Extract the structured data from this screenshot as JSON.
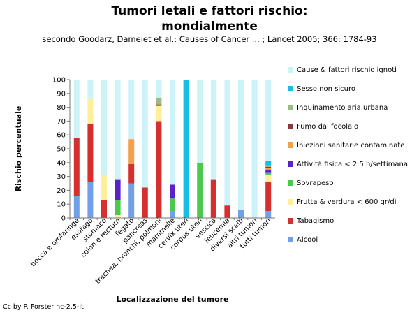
{
  "title_line1": "Tumori letali e fattori rischio:",
  "title_line2": "mondialmente",
  "subtitle": "secondo Goodarz, Dameiet et al.: Causes of Cancer ... ; Lancet 2005; 366: 1784-93",
  "credit": "Cc by P. Forster nc-2.5-it",
  "chart_data": {
    "type": "bar",
    "stacked": true,
    "xlabel": "Localizzazione del tumore",
    "ylabel": "Rischio percentuale",
    "ylim": [
      0,
      100
    ],
    "yticks": [
      0,
      10,
      20,
      30,
      40,
      50,
      60,
      70,
      80,
      90,
      100
    ],
    "grid": false,
    "legend_position": "right",
    "categories": [
      "bocca e orofaringe",
      "esofago",
      "stomaco",
      "colon e rectum",
      "fegato",
      "pancreas",
      "trachea, bronchi, polmoni",
      "mammelle",
      "cervix uteri",
      "corpus uteri",
      "vescica",
      "leucemia",
      "diversi scelti",
      "altri tumori",
      "tutti tumori"
    ],
    "series": [
      {
        "name": "Alcool",
        "color": "#6fa0e8",
        "values": [
          16,
          26,
          0,
          0,
          25,
          0,
          0,
          5,
          0,
          0,
          0,
          0,
          6,
          0,
          5
        ]
      },
      {
        "name": "Tabagismo",
        "color": "#d62f2f",
        "values": [
          42,
          42,
          13,
          0,
          14,
          22,
          70,
          0,
          0,
          0,
          28,
          9,
          0,
          0,
          21
        ]
      },
      {
        "name": "Frutta & verdura < 600 gr/dì",
        "color": "#ffef99",
        "values": [
          0,
          18,
          18,
          2,
          0,
          0,
          11,
          0,
          0,
          0,
          0,
          0,
          0,
          0,
          5
        ]
      },
      {
        "name": "Sovrapeso",
        "color": "#4cc94c",
        "values": [
          0,
          0,
          0,
          11,
          0,
          0,
          0,
          9,
          0,
          40,
          0,
          0,
          0,
          0,
          2
        ]
      },
      {
        "name": "Attività fisica < 2.5 h/settimana",
        "color": "#5a22c9",
        "values": [
          0,
          0,
          0,
          15,
          0,
          0,
          0,
          10,
          0,
          0,
          0,
          0,
          0,
          0,
          2
        ]
      },
      {
        "name": "Iniezioni sanitarie contaminate",
        "color": "#f4a04a",
        "values": [
          0,
          0,
          0,
          0,
          18,
          0,
          0,
          0,
          0,
          0,
          0,
          0,
          0,
          0,
          1
        ]
      },
      {
        "name": "Fumo dal focolaio",
        "color": "#8a3a3a",
        "values": [
          0,
          0,
          0,
          0,
          0,
          0,
          1,
          0,
          0,
          0,
          0,
          0,
          0,
          0,
          1
        ]
      },
      {
        "name": "Inquinamento aria urbana",
        "color": "#9cba84",
        "values": [
          0,
          0,
          0,
          0,
          0,
          0,
          5,
          0,
          0,
          0,
          0,
          0,
          0,
          0,
          1
        ]
      },
      {
        "name": "Sesso non sicuro",
        "color": "#17bfe6",
        "values": [
          0,
          0,
          0,
          0,
          0,
          0,
          0,
          0,
          100,
          0,
          0,
          0,
          0,
          0,
          3
        ]
      },
      {
        "name": "Cause & fattori rischio ignoti",
        "color": "#ccf4f8",
        "values": [
          42,
          14,
          69,
          72,
          43,
          78,
          13,
          76,
          0,
          60,
          72,
          91,
          94,
          100,
          59
        ]
      }
    ]
  }
}
